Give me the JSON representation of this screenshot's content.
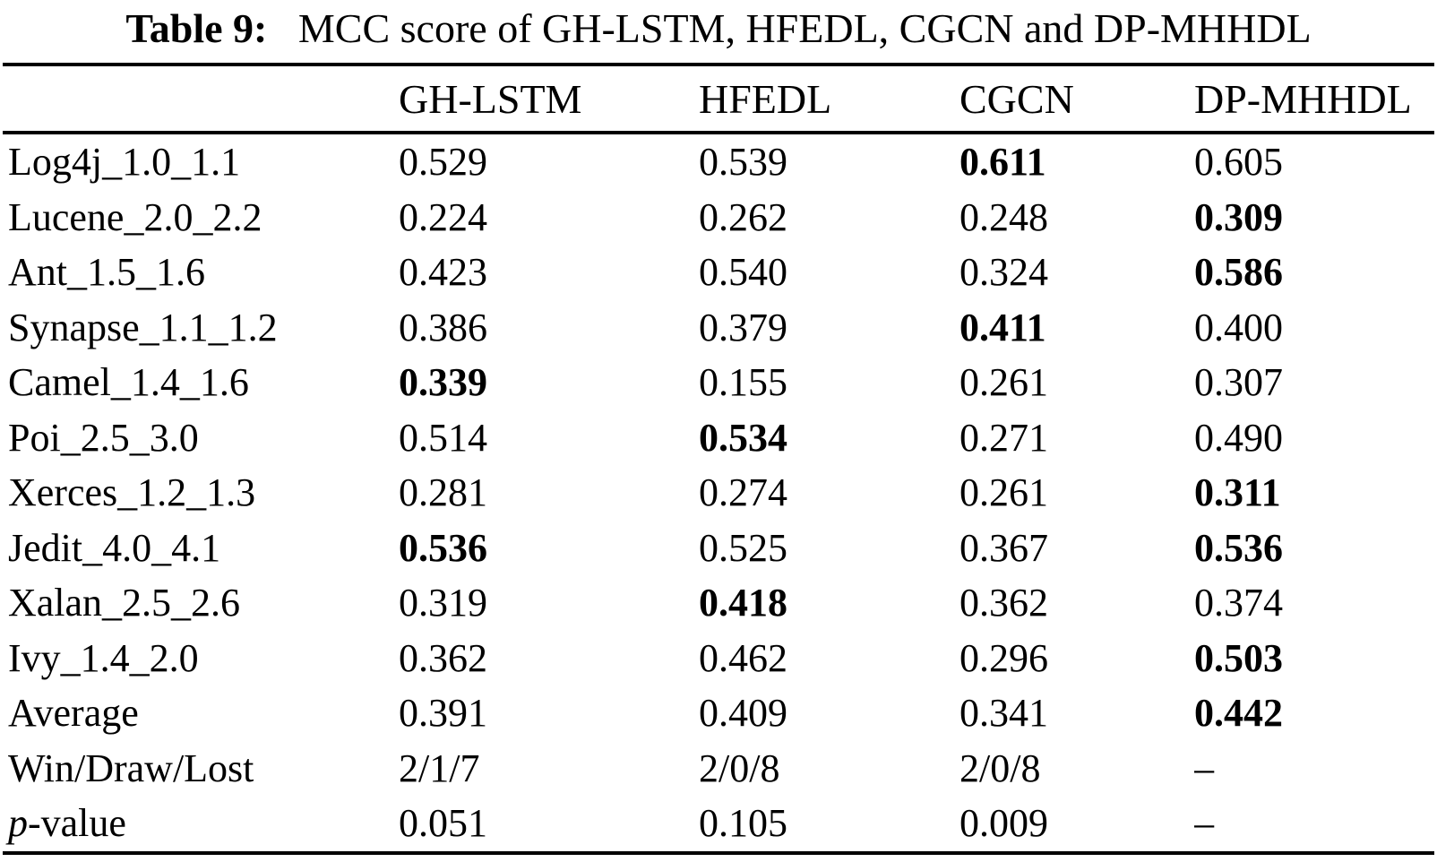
{
  "page": {
    "background_color": "#ffffff",
    "text_color": "#000000"
  },
  "title": {
    "label": "Table 9:",
    "text": "MCC score of GH-LSTM, HFEDL, CGCN and DP-MHHDL"
  },
  "table": {
    "columns": [
      "GH-LSTM",
      "HFEDL",
      "CGCN",
      "DP-MHHDL"
    ],
    "rows": [
      {
        "label_parts": [
          {
            "text": "Log4j_1.0_1.1"
          }
        ],
        "cells": [
          {
            "text": "0.529",
            "bold": false
          },
          {
            "text": "0.539",
            "bold": false
          },
          {
            "text": "0.611",
            "bold": true
          },
          {
            "text": "0.605",
            "bold": false
          }
        ]
      },
      {
        "label_parts": [
          {
            "text": "Lucene_2.0_2.2"
          }
        ],
        "cells": [
          {
            "text": "0.224",
            "bold": false
          },
          {
            "text": "0.262",
            "bold": false
          },
          {
            "text": "0.248",
            "bold": false
          },
          {
            "text": "0.309",
            "bold": true
          }
        ]
      },
      {
        "label_parts": [
          {
            "text": "Ant_1.5_1.6"
          }
        ],
        "cells": [
          {
            "text": "0.423",
            "bold": false
          },
          {
            "text": "0.540",
            "bold": false
          },
          {
            "text": "0.324",
            "bold": false
          },
          {
            "text": "0.586",
            "bold": true
          }
        ]
      },
      {
        "label_parts": [
          {
            "text": "Synapse_1.1_1.2"
          }
        ],
        "cells": [
          {
            "text": "0.386",
            "bold": false
          },
          {
            "text": "0.379",
            "bold": false
          },
          {
            "text": "0.411",
            "bold": true
          },
          {
            "text": "0.400",
            "bold": false
          }
        ]
      },
      {
        "label_parts": [
          {
            "text": "Camel_1.4_1.6"
          }
        ],
        "cells": [
          {
            "text": "0.339",
            "bold": true
          },
          {
            "text": "0.155",
            "bold": false
          },
          {
            "text": "0.261",
            "bold": false
          },
          {
            "text": "0.307",
            "bold": false
          }
        ]
      },
      {
        "label_parts": [
          {
            "text": "Poi_2.5_3.0"
          }
        ],
        "cells": [
          {
            "text": "0.514",
            "bold": false
          },
          {
            "text": "0.534",
            "bold": true
          },
          {
            "text": "0.271",
            "bold": false
          },
          {
            "text": "0.490",
            "bold": false
          }
        ]
      },
      {
        "label_parts": [
          {
            "text": "Xerces_1.2_1.3"
          }
        ],
        "cells": [
          {
            "text": "0.281",
            "bold": false
          },
          {
            "text": "0.274",
            "bold": false
          },
          {
            "text": "0.261",
            "bold": false
          },
          {
            "text": "0.311",
            "bold": true
          }
        ]
      },
      {
        "label_parts": [
          {
            "text": "Jedit_4.0_4.1"
          }
        ],
        "cells": [
          {
            "text": "0.536",
            "bold": true
          },
          {
            "text": "0.525",
            "bold": false
          },
          {
            "text": "0.367",
            "bold": false
          },
          {
            "text": "0.536",
            "bold": true
          }
        ]
      },
      {
        "label_parts": [
          {
            "text": "Xalan_2.5_2.6"
          }
        ],
        "cells": [
          {
            "text": "0.319",
            "bold": false
          },
          {
            "text": "0.418",
            "bold": true
          },
          {
            "text": "0.362",
            "bold": false
          },
          {
            "text": "0.374",
            "bold": false
          }
        ]
      },
      {
        "label_parts": [
          {
            "text": "Ivy_1.4_2.0"
          }
        ],
        "cells": [
          {
            "text": "0.362",
            "bold": false
          },
          {
            "text": "0.462",
            "bold": false
          },
          {
            "text": "0.296",
            "bold": false
          },
          {
            "text": "0.503",
            "bold": true
          }
        ]
      },
      {
        "label_parts": [
          {
            "text": "Average"
          }
        ],
        "cells": [
          {
            "text": "0.391",
            "bold": false
          },
          {
            "text": "0.409",
            "bold": false
          },
          {
            "text": "0.341",
            "bold": false
          },
          {
            "text": "0.442",
            "bold": true
          }
        ]
      },
      {
        "label_parts": [
          {
            "text": "Win/Draw/Lost"
          }
        ],
        "cells": [
          {
            "text": "2/1/7",
            "bold": false
          },
          {
            "text": "2/0/8",
            "bold": false
          },
          {
            "text": "2/0/8",
            "bold": false
          },
          {
            "text": "–",
            "bold": false
          }
        ]
      },
      {
        "label_parts": [
          {
            "text": "p",
            "italic": true
          },
          {
            "text": "-value"
          }
        ],
        "cells": [
          {
            "text": "0.051",
            "bold": false
          },
          {
            "text": "0.105",
            "bold": false
          },
          {
            "text": "0.009",
            "bold": false
          },
          {
            "text": "–",
            "bold": false
          }
        ]
      }
    ]
  }
}
